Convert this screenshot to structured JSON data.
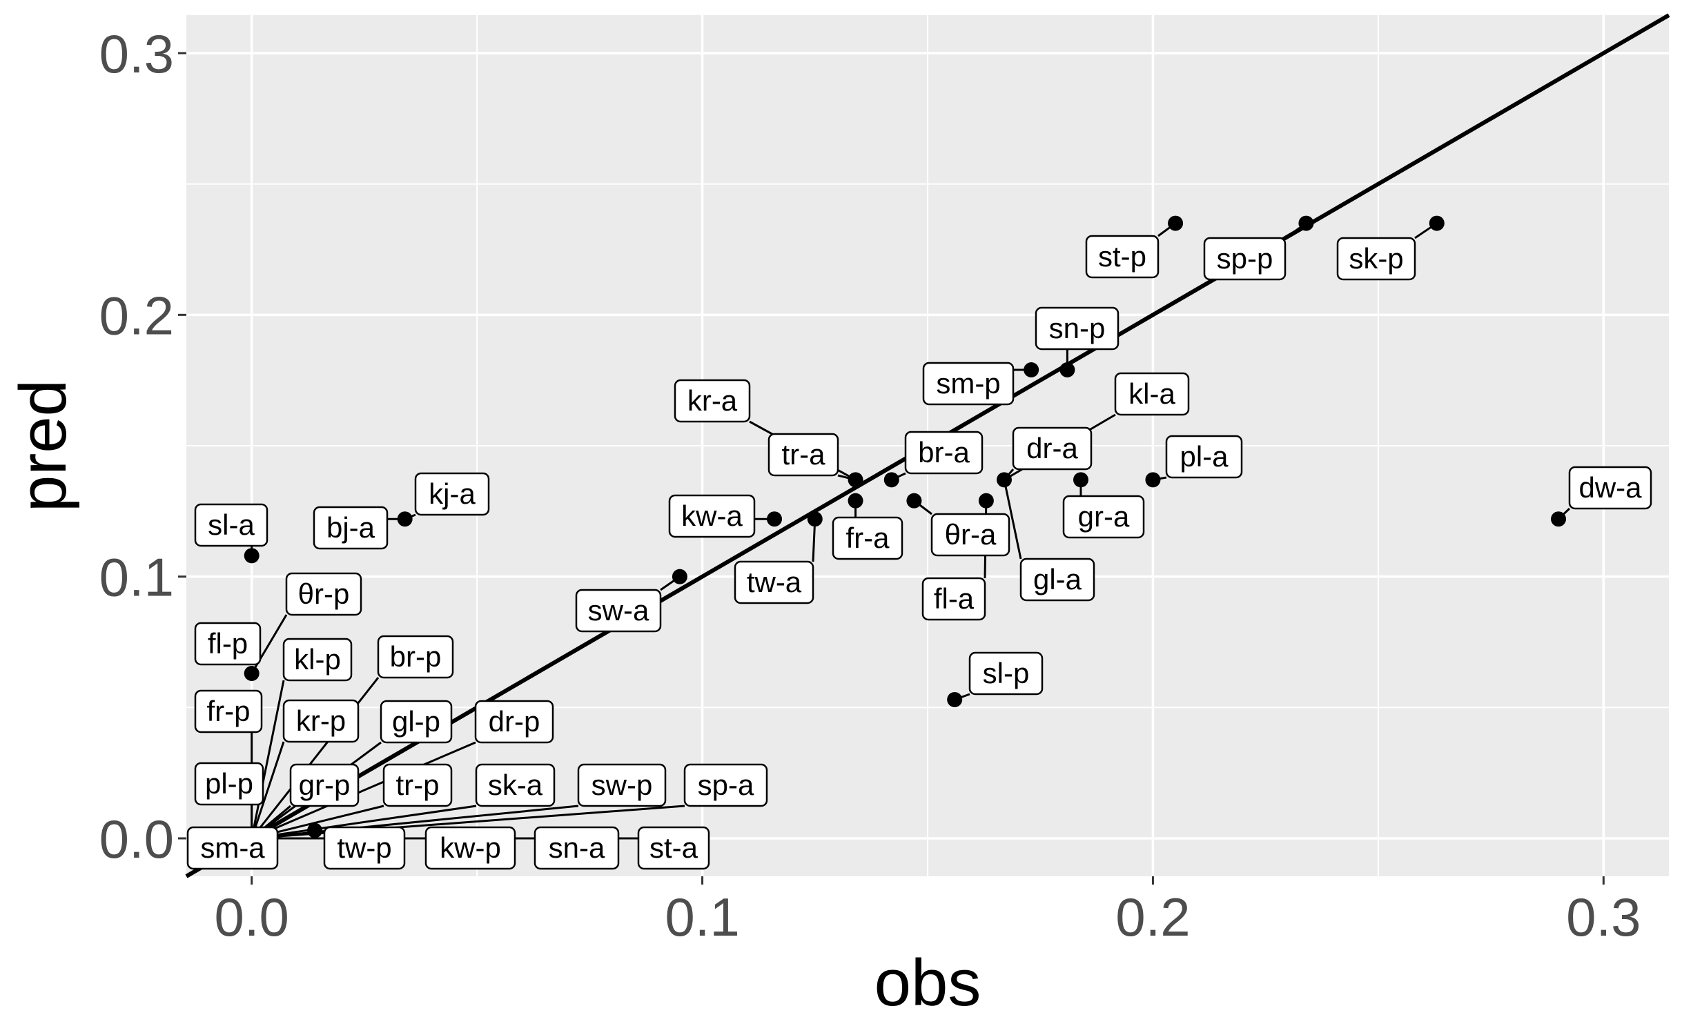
{
  "chart_data": {
    "type": "scatter",
    "xlabel": "obs",
    "ylabel": "pred",
    "xlim": [
      -0.0145,
      0.3145
    ],
    "ylim": [
      -0.0145,
      0.3145
    ],
    "x_ticks": [
      "0.0",
      "0.1",
      "0.2",
      "0.3"
    ],
    "y_ticks": [
      "0.0",
      "0.1",
      "0.2",
      "0.3"
    ],
    "grid": true,
    "reference_line": "y = x",
    "points": [
      {
        "label": "st-p",
        "x": 0.205,
        "y": 0.235
      },
      {
        "label": "sp-p",
        "x": 0.234,
        "y": 0.235
      },
      {
        "label": "sk-p",
        "x": 0.263,
        "y": 0.235
      },
      {
        "label": "sn-p",
        "x": 0.181,
        "y": 0.179
      },
      {
        "label": "sm-p",
        "x": 0.173,
        "y": 0.179
      },
      {
        "label": "kl-a",
        "x": 0.167,
        "y": 0.137
      },
      {
        "label": "dr-a",
        "x": 0.167,
        "y": 0.137
      },
      {
        "label": "gl-a",
        "x": 0.167,
        "y": 0.137
      },
      {
        "label": "gr-a",
        "x": 0.184,
        "y": 0.137
      },
      {
        "label": "pl-a",
        "x": 0.2,
        "y": 0.137
      },
      {
        "label": "dw-a",
        "x": 0.29,
        "y": 0.122
      },
      {
        "label": "kr-a",
        "x": 0.134,
        "y": 0.137
      },
      {
        "label": "tr-a",
        "x": 0.134,
        "y": 0.137
      },
      {
        "label": "br-a",
        "x": 0.142,
        "y": 0.137
      },
      {
        "label": "fr-a",
        "x": 0.134,
        "y": 0.129
      },
      {
        "label": "θr-a",
        "x": 0.147,
        "y": 0.129
      },
      {
        "label": "fl-a",
        "x": 0.163,
        "y": 0.129
      },
      {
        "label": "kw-a",
        "x": 0.116,
        "y": 0.122
      },
      {
        "label": "tw-a",
        "x": 0.125,
        "y": 0.122
      },
      {
        "label": "sw-a",
        "x": 0.095,
        "y": 0.1
      },
      {
        "label": "sl-p",
        "x": 0.156,
        "y": 0.053
      },
      {
        "label": "kj-a",
        "x": 0.034,
        "y": 0.122
      },
      {
        "label": "bj-a",
        "x": 0.034,
        "y": 0.122
      },
      {
        "label": "sl-a",
        "x": 0.0,
        "y": 0.108
      },
      {
        "label": "θr-p",
        "x": 0.0,
        "y": 0.063
      },
      {
        "label": "fl-p",
        "x": 0.0,
        "y": 0.063
      },
      {
        "label": "fr-p",
        "x": 0.0,
        "y": 0.0
      },
      {
        "label": "kl-p",
        "x": 0.0,
        "y": 0.0
      },
      {
        "label": "br-p",
        "x": 0.0,
        "y": 0.0
      },
      {
        "label": "kr-p",
        "x": 0.0,
        "y": 0.0
      },
      {
        "label": "gl-p",
        "x": 0.0,
        "y": 0.0
      },
      {
        "label": "dr-p",
        "x": 0.0,
        "y": 0.0
      },
      {
        "label": "pl-p",
        "x": 0.0,
        "y": 0.0
      },
      {
        "label": "gr-p",
        "x": 0.0,
        "y": 0.0
      },
      {
        "label": "tr-p",
        "x": 0.0,
        "y": 0.0
      },
      {
        "label": "sk-a",
        "x": 0.0,
        "y": 0.0
      },
      {
        "label": "sw-p",
        "x": 0.0,
        "y": 0.0
      },
      {
        "label": "sp-a",
        "x": 0.0,
        "y": 0.0
      },
      {
        "label": "sm-a",
        "x": 0.0,
        "y": 0.0
      },
      {
        "label": "tw-p",
        "x": 0.014,
        "y": 0.003
      },
      {
        "label": "kw-p",
        "x": 0.0,
        "y": 0.0
      },
      {
        "label": "sn-a",
        "x": 0.0,
        "y": 0.0
      },
      {
        "label": "st-a",
        "x": 0.0,
        "y": 0.0
      }
    ]
  }
}
